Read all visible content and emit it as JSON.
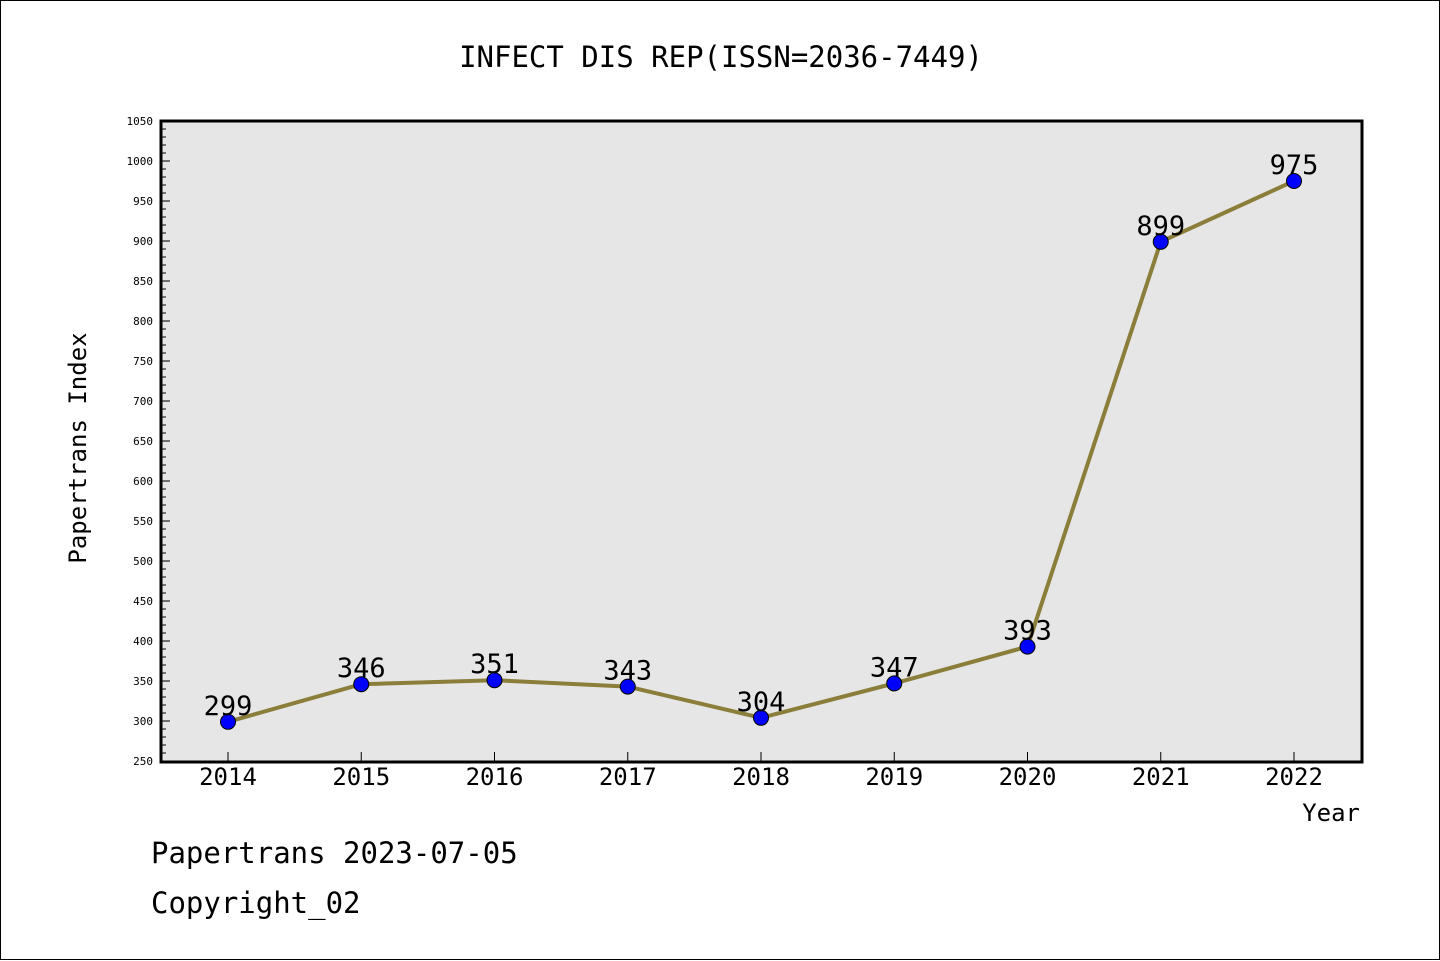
{
  "chart_data": {
    "type": "line",
    "title": "INFECT DIS REP(ISSN=2036-7449)",
    "xlabel": "Year",
    "ylabel": "Papertrans Index",
    "categories": [
      "2014",
      "2015",
      "2016",
      "2017",
      "2018",
      "2019",
      "2020",
      "2021",
      "2022"
    ],
    "series": [
      {
        "values": [
          299,
          346,
          351,
          343,
          304,
          347,
          393,
          899,
          975
        ]
      }
    ],
    "ylim": [
      250,
      1050
    ],
    "y_ticks": [
      "250",
      "300",
      "350",
      "400",
      "450",
      "500",
      "550",
      "600",
      "650",
      "700",
      "750",
      "800",
      "850",
      "900",
      "950",
      "1000",
      "1050"
    ],
    "grid": false,
    "data_labels": true,
    "colors": {
      "line": "#8b7d3a",
      "marker": "#0000ff",
      "plot_bg": "#e6e6e6"
    }
  },
  "footer": {
    "line1": "Papertrans 2023-07-05",
    "line2": "Copyright_02"
  }
}
